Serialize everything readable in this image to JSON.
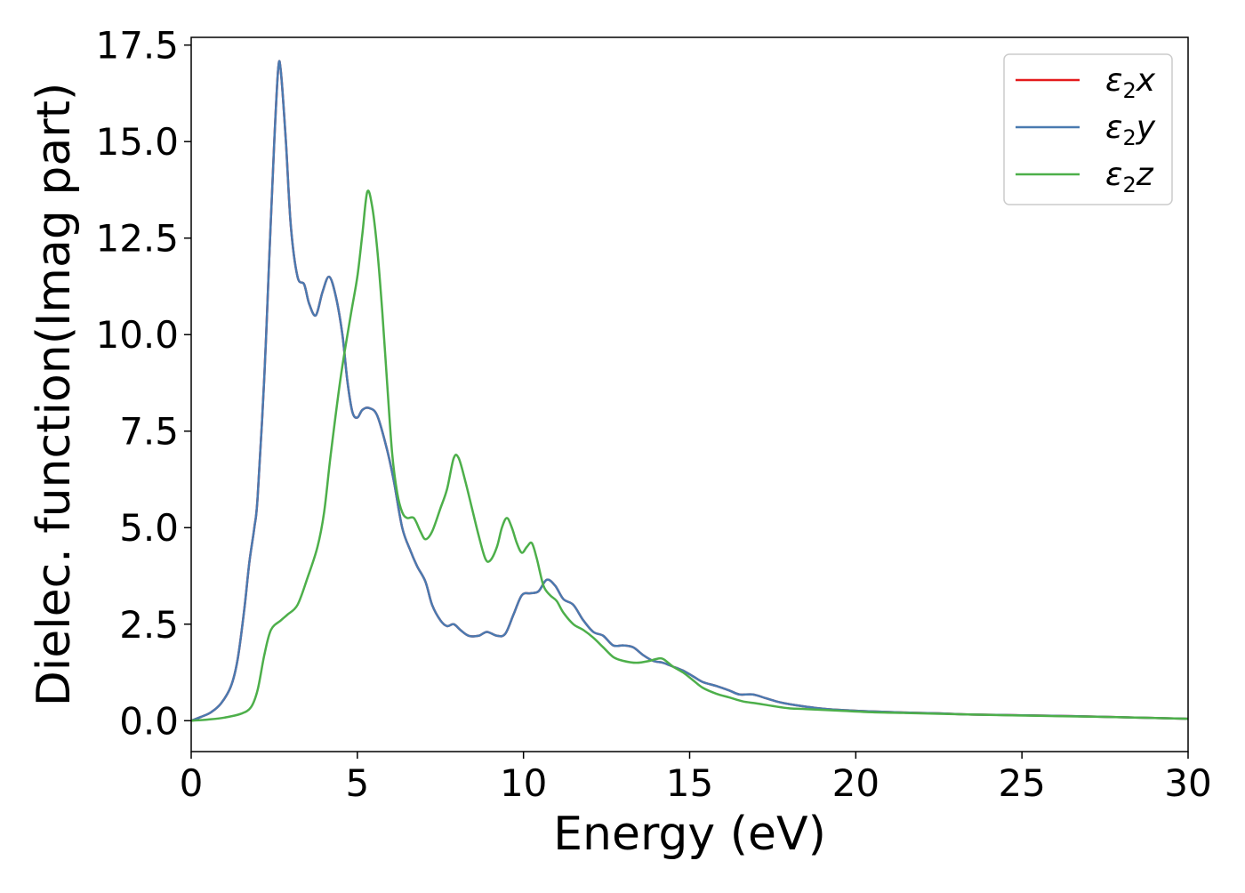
{
  "chart_data": {
    "type": "line",
    "title": "",
    "xlabel": "Energy (eV)",
    "ylabel": "Dielec. function(Imag part)",
    "xlim": [
      0,
      30
    ],
    "ylim": [
      -0.8,
      17.7
    ],
    "xticks": [
      0,
      5,
      10,
      15,
      20,
      25,
      30
    ],
    "yticks": [
      0.0,
      2.5,
      5.0,
      7.5,
      10.0,
      12.5,
      15.0,
      17.5
    ],
    "grid": false,
    "legend_position": "top-right",
    "series": [
      {
        "name": "ε₂x",
        "sym": "ε",
        "sub": "2",
        "axis": "x",
        "color": "#e41a1c",
        "points": [
          [
            0,
            0.0
          ],
          [
            0.3,
            0.1
          ],
          [
            0.6,
            0.22
          ],
          [
            0.9,
            0.45
          ],
          [
            1.2,
            0.9
          ],
          [
            1.4,
            1.6
          ],
          [
            1.6,
            2.9
          ],
          [
            1.75,
            4.1
          ],
          [
            1.9,
            5.0
          ],
          [
            2.0,
            5.8
          ],
          [
            2.2,
            8.9
          ],
          [
            2.35,
            12.0
          ],
          [
            2.5,
            15.0
          ],
          [
            2.62,
            16.9
          ],
          [
            2.7,
            16.8
          ],
          [
            2.85,
            15.0
          ],
          [
            3.0,
            12.8
          ],
          [
            3.2,
            11.5
          ],
          [
            3.4,
            11.3
          ],
          [
            3.55,
            10.8
          ],
          [
            3.75,
            10.5
          ],
          [
            3.95,
            11.1
          ],
          [
            4.15,
            11.5
          ],
          [
            4.35,
            11.0
          ],
          [
            4.55,
            10.0
          ],
          [
            4.7,
            8.8
          ],
          [
            4.85,
            8.0
          ],
          [
            5.0,
            7.85
          ],
          [
            5.15,
            8.05
          ],
          [
            5.35,
            8.1
          ],
          [
            5.6,
            7.9
          ],
          [
            5.9,
            7.0
          ],
          [
            6.1,
            6.2
          ],
          [
            6.35,
            5.0
          ],
          [
            6.6,
            4.4
          ],
          [
            6.8,
            4.0
          ],
          [
            7.05,
            3.6
          ],
          [
            7.25,
            3.0
          ],
          [
            7.5,
            2.6
          ],
          [
            7.7,
            2.45
          ],
          [
            7.9,
            2.5
          ],
          [
            8.1,
            2.35
          ],
          [
            8.35,
            2.2
          ],
          [
            8.65,
            2.2
          ],
          [
            8.9,
            2.3
          ],
          [
            9.2,
            2.2
          ],
          [
            9.45,
            2.25
          ],
          [
            9.7,
            2.75
          ],
          [
            9.95,
            3.25
          ],
          [
            10.2,
            3.3
          ],
          [
            10.45,
            3.35
          ],
          [
            10.7,
            3.65
          ],
          [
            10.95,
            3.5
          ],
          [
            11.2,
            3.15
          ],
          [
            11.5,
            3.0
          ],
          [
            11.8,
            2.6
          ],
          [
            12.1,
            2.3
          ],
          [
            12.4,
            2.2
          ],
          [
            12.7,
            1.95
          ],
          [
            13.0,
            1.95
          ],
          [
            13.3,
            1.9
          ],
          [
            13.6,
            1.7
          ],
          [
            13.9,
            1.55
          ],
          [
            14.2,
            1.5
          ],
          [
            14.5,
            1.4
          ],
          [
            14.8,
            1.3
          ],
          [
            15.1,
            1.15
          ],
          [
            15.4,
            1.0
          ],
          [
            15.8,
            0.9
          ],
          [
            16.2,
            0.78
          ],
          [
            16.5,
            0.68
          ],
          [
            16.9,
            0.68
          ],
          [
            17.3,
            0.58
          ],
          [
            17.7,
            0.48
          ],
          [
            18.2,
            0.4
          ],
          [
            18.8,
            0.33
          ],
          [
            19.5,
            0.28
          ],
          [
            20.5,
            0.24
          ],
          [
            21.5,
            0.21
          ],
          [
            22.5,
            0.19
          ],
          [
            23.5,
            0.16
          ],
          [
            25.0,
            0.14
          ],
          [
            26.5,
            0.12
          ],
          [
            28.0,
            0.09
          ],
          [
            30.0,
            0.05
          ]
        ]
      },
      {
        "name": "ε₂y",
        "sym": "ε",
        "sub": "2",
        "axis": "y",
        "color": "#4a7ab0",
        "points": [
          [
            0,
            0.0
          ],
          [
            0.3,
            0.1
          ],
          [
            0.6,
            0.22
          ],
          [
            0.9,
            0.45
          ],
          [
            1.2,
            0.9
          ],
          [
            1.4,
            1.6
          ],
          [
            1.6,
            2.9
          ],
          [
            1.75,
            4.1
          ],
          [
            1.9,
            5.0
          ],
          [
            2.0,
            5.8
          ],
          [
            2.2,
            8.9
          ],
          [
            2.35,
            12.0
          ],
          [
            2.5,
            15.0
          ],
          [
            2.62,
            16.9
          ],
          [
            2.7,
            16.8
          ],
          [
            2.85,
            15.0
          ],
          [
            3.0,
            12.8
          ],
          [
            3.2,
            11.5
          ],
          [
            3.4,
            11.3
          ],
          [
            3.55,
            10.8
          ],
          [
            3.75,
            10.5
          ],
          [
            3.95,
            11.1
          ],
          [
            4.15,
            11.5
          ],
          [
            4.35,
            11.0
          ],
          [
            4.55,
            10.0
          ],
          [
            4.7,
            8.8
          ],
          [
            4.85,
            8.0
          ],
          [
            5.0,
            7.85
          ],
          [
            5.15,
            8.05
          ],
          [
            5.35,
            8.1
          ],
          [
            5.6,
            7.9
          ],
          [
            5.9,
            7.0
          ],
          [
            6.1,
            6.2
          ],
          [
            6.35,
            5.0
          ],
          [
            6.6,
            4.4
          ],
          [
            6.8,
            4.0
          ],
          [
            7.05,
            3.6
          ],
          [
            7.25,
            3.0
          ],
          [
            7.5,
            2.6
          ],
          [
            7.7,
            2.45
          ],
          [
            7.9,
            2.5
          ],
          [
            8.1,
            2.35
          ],
          [
            8.35,
            2.2
          ],
          [
            8.65,
            2.2
          ],
          [
            8.9,
            2.3
          ],
          [
            9.2,
            2.2
          ],
          [
            9.45,
            2.25
          ],
          [
            9.7,
            2.75
          ],
          [
            9.95,
            3.25
          ],
          [
            10.2,
            3.3
          ],
          [
            10.45,
            3.35
          ],
          [
            10.7,
            3.65
          ],
          [
            10.95,
            3.5
          ],
          [
            11.2,
            3.15
          ],
          [
            11.5,
            3.0
          ],
          [
            11.8,
            2.6
          ],
          [
            12.1,
            2.3
          ],
          [
            12.4,
            2.2
          ],
          [
            12.7,
            1.95
          ],
          [
            13.0,
            1.95
          ],
          [
            13.3,
            1.9
          ],
          [
            13.6,
            1.7
          ],
          [
            13.9,
            1.55
          ],
          [
            14.2,
            1.5
          ],
          [
            14.5,
            1.4
          ],
          [
            14.8,
            1.3
          ],
          [
            15.1,
            1.15
          ],
          [
            15.4,
            1.0
          ],
          [
            15.8,
            0.9
          ],
          [
            16.2,
            0.78
          ],
          [
            16.5,
            0.68
          ],
          [
            16.9,
            0.68
          ],
          [
            17.3,
            0.58
          ],
          [
            17.7,
            0.48
          ],
          [
            18.2,
            0.4
          ],
          [
            18.8,
            0.33
          ],
          [
            19.5,
            0.28
          ],
          [
            20.5,
            0.24
          ],
          [
            21.5,
            0.21
          ],
          [
            22.5,
            0.19
          ],
          [
            23.5,
            0.16
          ],
          [
            25.0,
            0.14
          ],
          [
            26.5,
            0.12
          ],
          [
            28.0,
            0.09
          ],
          [
            30.0,
            0.05
          ]
        ]
      },
      {
        "name": "ε₂z",
        "sym": "ε",
        "sub": "2",
        "axis": "z",
        "color": "#4daf4a",
        "points": [
          [
            0,
            0.0
          ],
          [
            0.5,
            0.03
          ],
          [
            1.0,
            0.08
          ],
          [
            1.5,
            0.18
          ],
          [
            1.8,
            0.35
          ],
          [
            2.0,
            0.8
          ],
          [
            2.2,
            1.7
          ],
          [
            2.4,
            2.35
          ],
          [
            2.7,
            2.6
          ],
          [
            2.9,
            2.75
          ],
          [
            3.2,
            3.0
          ],
          [
            3.5,
            3.7
          ],
          [
            3.8,
            4.5
          ],
          [
            4.0,
            5.4
          ],
          [
            4.2,
            6.9
          ],
          [
            4.5,
            8.9
          ],
          [
            4.8,
            10.5
          ],
          [
            5.0,
            11.5
          ],
          [
            5.15,
            12.6
          ],
          [
            5.3,
            13.7
          ],
          [
            5.45,
            13.3
          ],
          [
            5.6,
            12.2
          ],
          [
            5.75,
            10.6
          ],
          [
            5.9,
            8.7
          ],
          [
            6.05,
            6.9
          ],
          [
            6.2,
            5.9
          ],
          [
            6.35,
            5.4
          ],
          [
            6.5,
            5.25
          ],
          [
            6.7,
            5.25
          ],
          [
            6.9,
            4.9
          ],
          [
            7.05,
            4.7
          ],
          [
            7.25,
            4.9
          ],
          [
            7.5,
            5.5
          ],
          [
            7.7,
            6.0
          ],
          [
            7.9,
            6.8
          ],
          [
            8.05,
            6.8
          ],
          [
            8.25,
            6.2
          ],
          [
            8.45,
            5.5
          ],
          [
            8.65,
            4.8
          ],
          [
            8.85,
            4.2
          ],
          [
            9.0,
            4.15
          ],
          [
            9.2,
            4.5
          ],
          [
            9.35,
            5.0
          ],
          [
            9.5,
            5.25
          ],
          [
            9.65,
            5.0
          ],
          [
            9.8,
            4.6
          ],
          [
            9.95,
            4.35
          ],
          [
            10.1,
            4.5
          ],
          [
            10.25,
            4.6
          ],
          [
            10.4,
            4.2
          ],
          [
            10.6,
            3.5
          ],
          [
            10.8,
            3.25
          ],
          [
            11.0,
            3.1
          ],
          [
            11.2,
            2.8
          ],
          [
            11.5,
            2.5
          ],
          [
            11.8,
            2.35
          ],
          [
            12.1,
            2.15
          ],
          [
            12.4,
            1.9
          ],
          [
            12.7,
            1.65
          ],
          [
            13.0,
            1.55
          ],
          [
            13.4,
            1.5
          ],
          [
            13.8,
            1.55
          ],
          [
            14.0,
            1.6
          ],
          [
            14.2,
            1.6
          ],
          [
            14.5,
            1.4
          ],
          [
            14.8,
            1.25
          ],
          [
            15.1,
            1.05
          ],
          [
            15.4,
            0.85
          ],
          [
            15.8,
            0.7
          ],
          [
            16.2,
            0.6
          ],
          [
            16.6,
            0.5
          ],
          [
            17.0,
            0.45
          ],
          [
            17.5,
            0.38
          ],
          [
            18.0,
            0.32
          ],
          [
            18.5,
            0.3
          ],
          [
            19.5,
            0.26
          ],
          [
            20.5,
            0.22
          ],
          [
            21.5,
            0.2
          ],
          [
            22.5,
            0.18
          ],
          [
            24.0,
            0.15
          ],
          [
            26.0,
            0.12
          ],
          [
            28.0,
            0.09
          ],
          [
            30.0,
            0.05
          ]
        ]
      }
    ]
  }
}
